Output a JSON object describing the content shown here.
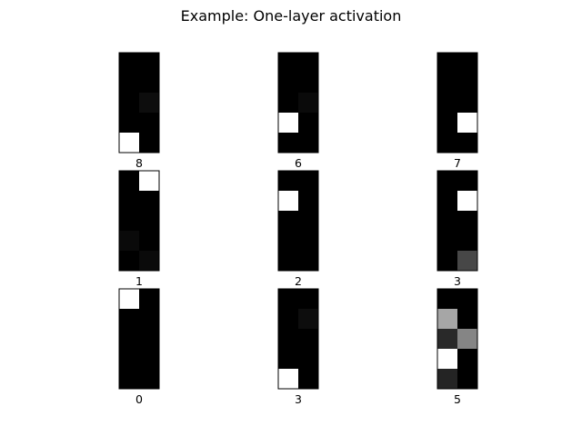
{
  "title": "Example: One-layer activation",
  "chart_data": {
    "type": "heatmap",
    "title": "Example: One-layer activation",
    "colormap": "gray",
    "value_range": [
      0,
      1
    ],
    "rows": 5,
    "cols": 2,
    "panels": [
      {
        "label": "8",
        "grid": [
          [
            0,
            0
          ],
          [
            0,
            0
          ],
          [
            0,
            0.05
          ],
          [
            0,
            0
          ],
          [
            1,
            0
          ]
        ]
      },
      {
        "label": "6",
        "grid": [
          [
            0,
            0
          ],
          [
            0,
            0
          ],
          [
            0,
            0.04
          ],
          [
            1,
            0
          ],
          [
            0,
            0
          ]
        ]
      },
      {
        "label": "7",
        "grid": [
          [
            0,
            0
          ],
          [
            0,
            0
          ],
          [
            0,
            0
          ],
          [
            0,
            1
          ],
          [
            0,
            0
          ]
        ]
      },
      {
        "label": "1",
        "grid": [
          [
            0,
            1
          ],
          [
            0,
            0
          ],
          [
            0,
            0
          ],
          [
            0.04,
            0
          ],
          [
            0,
            0.04
          ]
        ]
      },
      {
        "label": "2",
        "grid": [
          [
            0,
            0
          ],
          [
            1,
            0
          ],
          [
            0,
            0
          ],
          [
            0,
            0
          ],
          [
            0,
            0
          ]
        ]
      },
      {
        "label": "3",
        "grid": [
          [
            0,
            0
          ],
          [
            0,
            1
          ],
          [
            0,
            0
          ],
          [
            0,
            0
          ],
          [
            0,
            0.28
          ]
        ]
      },
      {
        "label": "0",
        "grid": [
          [
            1,
            0
          ],
          [
            0,
            0
          ],
          [
            0,
            0
          ],
          [
            0,
            0
          ],
          [
            0,
            0
          ]
        ]
      },
      {
        "label": "3",
        "grid": [
          [
            0,
            0
          ],
          [
            0,
            0.05
          ],
          [
            0,
            0
          ],
          [
            0,
            0
          ],
          [
            1,
            0
          ]
        ]
      },
      {
        "label": "5",
        "grid": [
          [
            0,
            0
          ],
          [
            0.65,
            0
          ],
          [
            0.16,
            0.52
          ],
          [
            1,
            0
          ],
          [
            0.14,
            0
          ]
        ]
      }
    ]
  }
}
